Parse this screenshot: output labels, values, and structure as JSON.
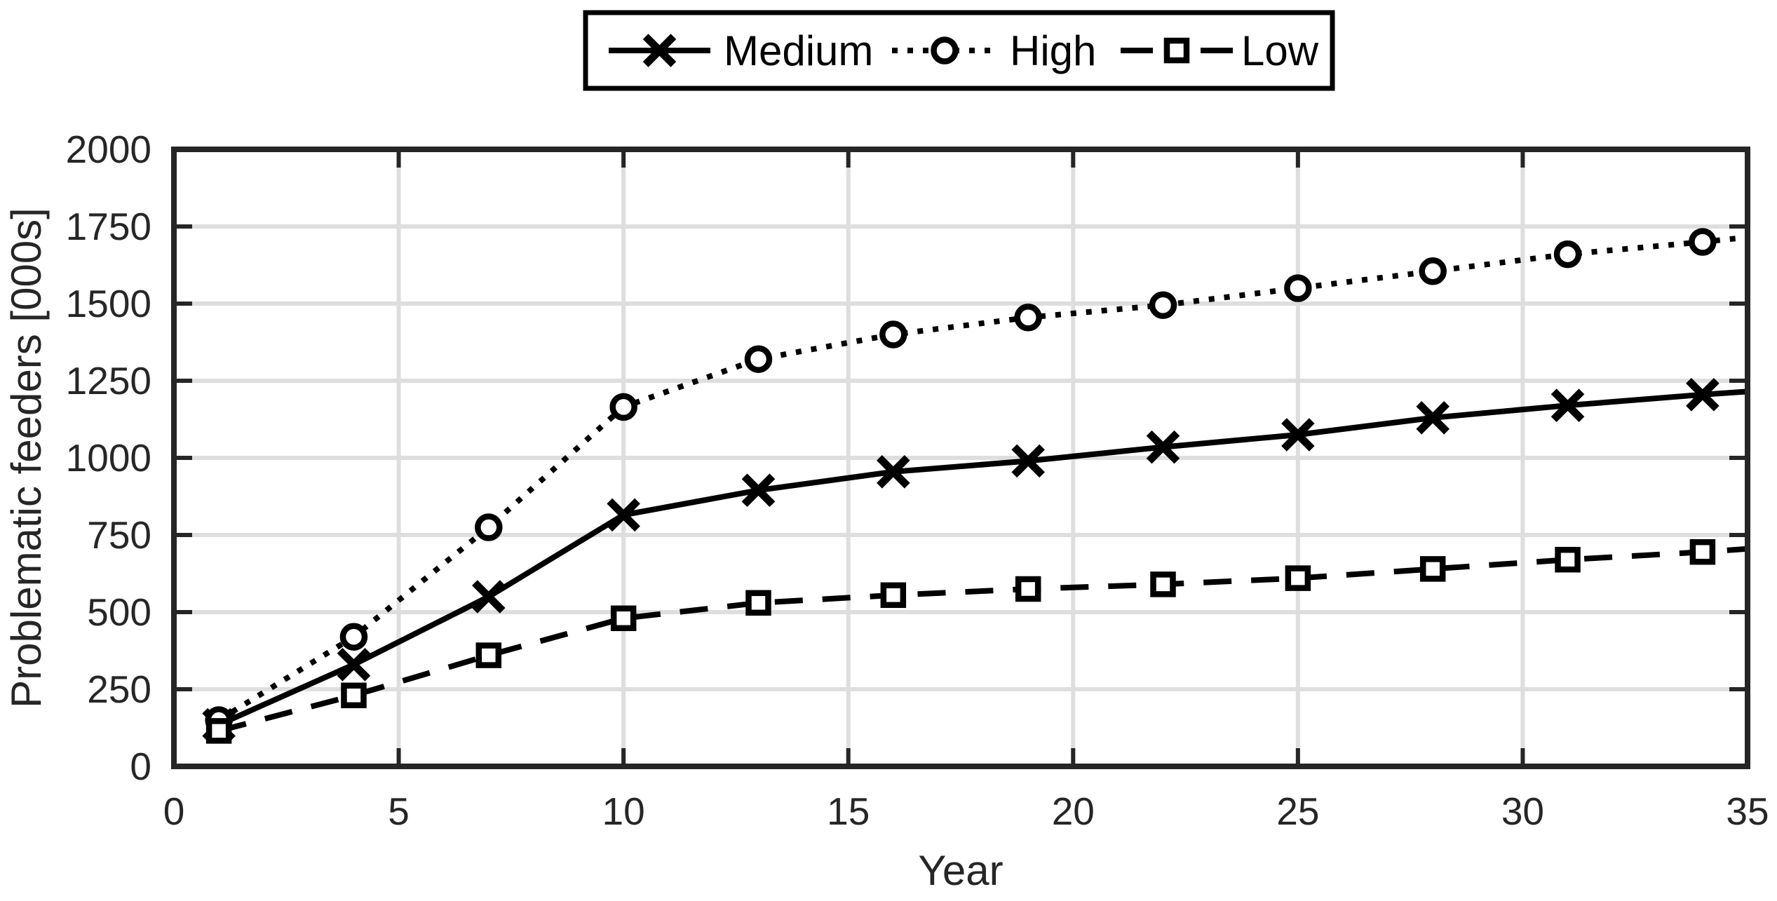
{
  "chart_data": {
    "type": "line",
    "title": "",
    "xlabel": "Year",
    "ylabel": "Problematic feeders [000s]",
    "xlim": [
      0,
      35
    ],
    "ylim": [
      0,
      2000
    ],
    "x_ticks": [
      0,
      5,
      10,
      15,
      20,
      25,
      30,
      35
    ],
    "y_ticks": [
      0,
      250,
      500,
      750,
      1000,
      1250,
      1500,
      1750,
      2000
    ],
    "grid": true,
    "box": true,
    "legend_position": "top-center-outside",
    "x": [
      1,
      4,
      7,
      10,
      13,
      16,
      19,
      22,
      25,
      28,
      31,
      34
    ],
    "series": [
      {
        "name": "Medium",
        "line_style": "solid",
        "marker": "x",
        "values": [
          135,
          330,
          550,
          815,
          895,
          955,
          990,
          1035,
          1075,
          1130,
          1170,
          1205
        ],
        "edge_value_at_x35": 1215
      },
      {
        "name": "High",
        "line_style": "dotted",
        "marker": "circle",
        "values": [
          150,
          420,
          775,
          1165,
          1320,
          1400,
          1455,
          1495,
          1550,
          1605,
          1660,
          1700
        ],
        "edge_value_at_x35": 1715
      },
      {
        "name": "Low",
        "line_style": "dashed",
        "marker": "square",
        "values": [
          115,
          230,
          360,
          480,
          530,
          555,
          575,
          590,
          610,
          640,
          670,
          695
        ],
        "edge_value_at_x35": 705
      }
    ],
    "colors": {
      "series": "#000000",
      "axes": "#262626",
      "text": "#262626",
      "grid": "#dedede",
      "background": "#ffffff",
      "marker_fill": "#ffffff"
    }
  }
}
